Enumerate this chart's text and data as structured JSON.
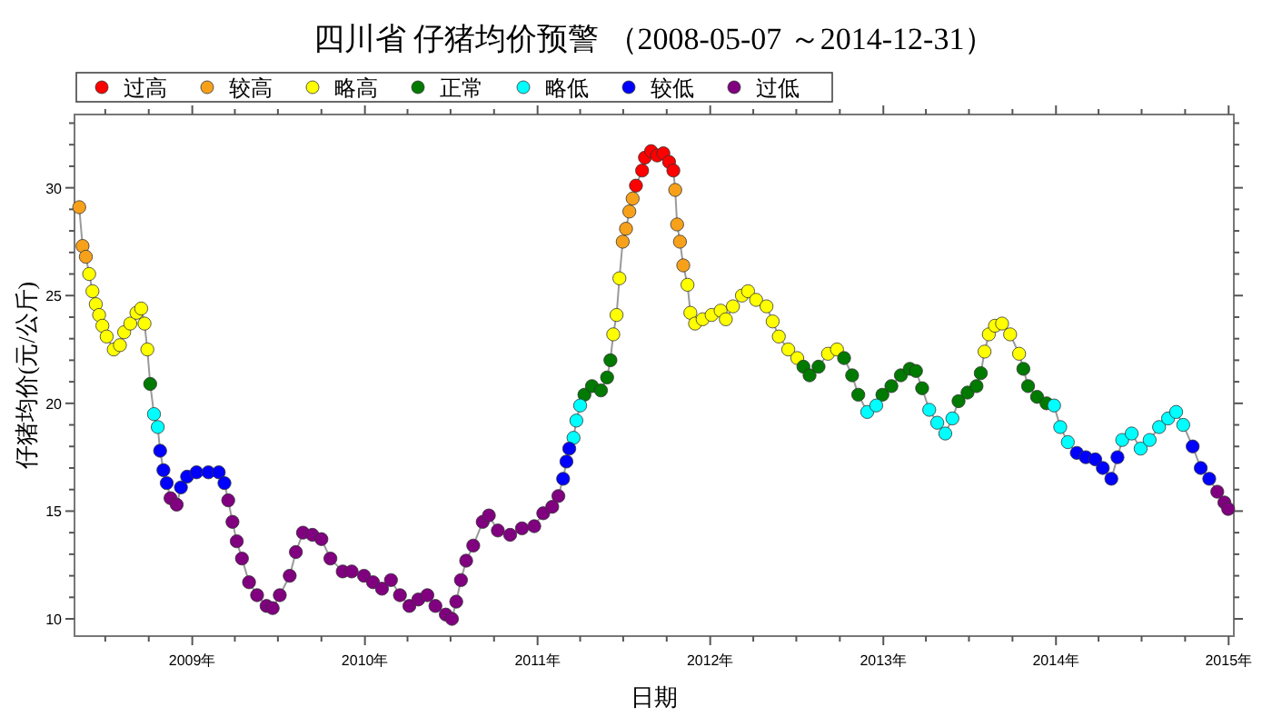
{
  "chart_data": {
    "type": "scatter",
    "title": "四川省 仔猪均价预警 （2008-05-07 ～2014-12-31）",
    "xlabel": "日期",
    "ylabel": "仔猪均价(元/公斤)",
    "xlim": [
      "2008-04-27",
      "2015-01-12"
    ],
    "ylim": [
      9.2,
      33.4
    ],
    "xticks": [
      {
        "value": "2008-07-01",
        "label": null
      },
      {
        "value": "2008-10-01",
        "label": null
      },
      {
        "value": "2009-01-01",
        "label": "2009年"
      },
      {
        "value": "2009-04-01",
        "label": null
      },
      {
        "value": "2009-07-01",
        "label": null
      },
      {
        "value": "2009-10-01",
        "label": null
      },
      {
        "value": "2010-01-01",
        "label": "2010年"
      },
      {
        "value": "2010-04-01",
        "label": null
      },
      {
        "value": "2010-07-01",
        "label": null
      },
      {
        "value": "2010-10-01",
        "label": null
      },
      {
        "value": "2011-01-01",
        "label": "2011年"
      },
      {
        "value": "2011-04-01",
        "label": null
      },
      {
        "value": "2011-07-01",
        "label": null
      },
      {
        "value": "2011-10-01",
        "label": null
      },
      {
        "value": "2012-01-01",
        "label": "2012年"
      },
      {
        "value": "2012-04-01",
        "label": null
      },
      {
        "value": "2012-07-01",
        "label": null
      },
      {
        "value": "2012-10-01",
        "label": null
      },
      {
        "value": "2013-01-01",
        "label": "2013年"
      },
      {
        "value": "2013-04-01",
        "label": null
      },
      {
        "value": "2013-07-01",
        "label": null
      },
      {
        "value": "2013-10-01",
        "label": null
      },
      {
        "value": "2014-01-01",
        "label": "2014年"
      },
      {
        "value": "2014-04-01",
        "label": null
      },
      {
        "value": "2014-07-01",
        "label": null
      },
      {
        "value": "2014-10-01",
        "label": null
      },
      {
        "value": "2015-01-01",
        "label": "2015年"
      }
    ],
    "yticks": [
      10,
      {
        "value": 11,
        "label": null
      },
      {
        "value": 12,
        "label": null
      },
      {
        "value": 13,
        "label": null
      },
      {
        "value": 14,
        "label": null
      },
      15,
      {
        "value": 16,
        "label": null
      },
      {
        "value": 17,
        "label": null
      },
      {
        "value": 18,
        "label": null
      },
      {
        "value": 19,
        "label": null
      },
      20,
      {
        "value": 21,
        "label": null
      },
      {
        "value": 22,
        "label": null
      },
      {
        "value": 23,
        "label": null
      },
      {
        "value": 24,
        "label": null
      },
      25,
      {
        "value": 26,
        "label": null
      },
      {
        "value": 27,
        "label": null
      },
      {
        "value": 28,
        "label": null
      },
      {
        "value": 29,
        "label": null
      },
      30,
      {
        "value": 31,
        "label": null
      },
      {
        "value": 32,
        "label": null
      },
      {
        "value": 33,
        "label": null
      }
    ],
    "legend": "top",
    "marker": "circle",
    "series": [
      {
        "type": "line",
        "marker": "none",
        "color": "#9a9a9a",
        "x": [
          "2008-05-07",
          "2008-05-14",
          "2008-05-21",
          "2008-05-28",
          "2008-06-04",
          "2008-06-11",
          "2008-06-18",
          "2008-06-25",
          "2008-07-04",
          "2008-07-19",
          "2008-08-01",
          "2008-08-10",
          "2008-08-23",
          "2008-09-05",
          "2008-09-15",
          "2008-09-22",
          "2008-09-28",
          "2008-10-04",
          "2008-10-12",
          "2008-10-20",
          "2008-10-25",
          "2008-11-01",
          "2008-11-08",
          "2008-11-16",
          "2008-11-29",
          "2008-12-08",
          "2008-12-21",
          "2009-01-10",
          "2009-02-04",
          "2009-02-26",
          "2009-03-10",
          "2009-03-18",
          "2009-03-27",
          "2009-04-05",
          "2009-04-16",
          "2009-05-01",
          "2009-05-18",
          "2009-06-07",
          "2009-06-20",
          "2009-07-05",
          "2009-07-26",
          "2009-08-08",
          "2009-08-23",
          "2009-09-12",
          "2009-10-01",
          "2009-10-20",
          "2009-11-15",
          "2009-12-04",
          "2009-12-30",
          "2010-01-18",
          "2010-02-06",
          "2010-02-25",
          "2010-03-16",
          "2010-04-05",
          "2010-04-24",
          "2010-05-13",
          "2010-05-30",
          "2010-06-21",
          "2010-07-04",
          "2010-07-13",
          "2010-07-23",
          "2010-08-03",
          "2010-08-18",
          "2010-09-07",
          "2010-09-20",
          "2010-10-09",
          "2010-11-04",
          "2010-11-29",
          "2010-12-25",
          "2011-01-13",
          "2011-02-01",
          "2011-02-14",
          "2011-02-24",
          "2011-03-03",
          "2011-03-09",
          "2011-03-18",
          "2011-03-24",
          "2011-04-01",
          "2011-04-10",
          "2011-04-26",
          "2011-05-15",
          "2011-05-28",
          "2011-06-04",
          "2011-06-10",
          "2011-06-17",
          "2011-06-23",
          "2011-06-30",
          "2011-07-07",
          "2011-07-14",
          "2011-07-21",
          "2011-07-28",
          "2011-08-10",
          "2011-08-16",
          "2011-08-29",
          "2011-09-11",
          "2011-09-24",
          "2011-10-06",
          "2011-10-15",
          "2011-10-19",
          "2011-10-23",
          "2011-10-29",
          "2011-11-05",
          "2011-11-14",
          "2011-11-20",
          "2011-11-30",
          "2011-12-16",
          "2012-01-04",
          "2012-01-23",
          "2012-02-03",
          "2012-02-18",
          "2012-03-08",
          "2012-03-21",
          "2012-04-07",
          "2012-04-29",
          "2012-05-12",
          "2012-05-25",
          "2012-06-14",
          "2012-07-03",
          "2012-07-16",
          "2012-07-29",
          "2012-08-17",
          "2012-09-06",
          "2012-09-25",
          "2012-10-10",
          "2012-10-27",
          "2012-11-09",
          "2012-11-28",
          "2012-12-17",
          "2012-12-30",
          "2013-01-18",
          "2013-02-07",
          "2013-02-26",
          "2013-03-11",
          "2013-03-24",
          "2013-04-08",
          "2013-04-25",
          "2013-05-12",
          "2013-05-27",
          "2013-06-09",
          "2013-06-28",
          "2013-07-17",
          "2013-07-26",
          "2013-08-03",
          "2013-08-12",
          "2013-08-25",
          "2013-09-09",
          "2013-09-26",
          "2013-10-15",
          "2013-10-24",
          "2013-11-03",
          "2013-11-22",
          "2013-12-12",
          "2013-12-28",
          "2014-01-10",
          "2014-01-26",
          "2014-02-14",
          "2014-03-05",
          "2014-03-25",
          "2014-04-10",
          "2014-04-28",
          "2014-05-11",
          "2014-05-21",
          "2014-06-10",
          "2014-06-29",
          "2014-07-18",
          "2014-08-07",
          "2014-08-26",
          "2014-09-12",
          "2014-09-27",
          "2014-10-17",
          "2014-11-03",
          "2014-11-21",
          "2014-12-08",
          "2014-12-23",
          "2014-12-31"
        ],
        "values": [
          29.1,
          27.3,
          26.8,
          26.0,
          25.2,
          24.6,
          24.1,
          23.6,
          23.1,
          22.5,
          22.7,
          23.3,
          23.7,
          24.2,
          24.4,
          23.7,
          22.5,
          20.9,
          19.5,
          18.9,
          17.8,
          16.9,
          16.3,
          15.6,
          15.3,
          16.1,
          16.6,
          16.8,
          16.8,
          16.8,
          16.3,
          15.5,
          14.5,
          13.6,
          12.8,
          11.7,
          11.1,
          10.6,
          10.5,
          11.1,
          12.0,
          13.1,
          14.0,
          13.9,
          13.7,
          12.8,
          12.2,
          12.2,
          12.0,
          11.7,
          11.4,
          11.8,
          11.1,
          10.6,
          10.9,
          11.1,
          10.6,
          10.2,
          10.0,
          10.8,
          11.8,
          12.7,
          13.4,
          14.5,
          14.8,
          14.1,
          13.9,
          14.2,
          14.3,
          14.9,
          15.2,
          15.7,
          16.5,
          17.3,
          17.9,
          18.4,
          19.2,
          19.9,
          20.4,
          20.8,
          20.6,
          21.2,
          22.0,
          23.2,
          24.1,
          25.8,
          27.5,
          28.1,
          28.9,
          29.5,
          30.1,
          30.8,
          31.4,
          31.7,
          31.5,
          31.6,
          31.2,
          30.8,
          29.9,
          28.3,
          27.5,
          26.4,
          25.5,
          24.2,
          23.7,
          23.9,
          24.1,
          24.3,
          23.9,
          24.5,
          25.0,
          25.2,
          24.8,
          24.5,
          23.8,
          23.1,
          22.5,
          22.1,
          21.7,
          21.3,
          21.7,
          22.3,
          22.5,
          22.1,
          21.3,
          20.4,
          19.6,
          19.9,
          20.4,
          20.8,
          21.3,
          21.6,
          21.5,
          20.7,
          19.7,
          19.1,
          18.6,
          19.3,
          20.1,
          20.5,
          20.8,
          21.4,
          22.4,
          23.2,
          23.6,
          23.7,
          23.2,
          22.3,
          21.6,
          20.8,
          20.3,
          20.0,
          19.9,
          18.9,
          18.2,
          17.7,
          17.5,
          17.4,
          17.0,
          16.5,
          17.5,
          18.3,
          18.6,
          17.9,
          18.3,
          18.9,
          19.3,
          19.6,
          19.0,
          18.0,
          17.0,
          16.5,
          15.9,
          15.4,
          15.1
        ]
      },
      {
        "name": "过高",
        "color": "#ff0000",
        "x": [
          "2011-07-28",
          "2011-08-10",
          "2011-08-16",
          "2011-08-29",
          "2011-09-11",
          "2011-09-24",
          "2011-10-06",
          "2011-10-15"
        ],
        "values": [
          30.1,
          30.8,
          31.4,
          31.7,
          31.5,
          31.6,
          31.2,
          30.8
        ]
      },
      {
        "name": "较高",
        "color": "#f7a11a",
        "x": [
          "2008-05-07",
          "2008-05-14",
          "2008-05-21",
          "2011-06-30",
          "2011-07-07",
          "2011-07-14",
          "2011-07-21",
          "2011-10-19",
          "2011-10-23",
          "2011-10-29",
          "2011-11-05"
        ],
        "values": [
          29.1,
          27.3,
          26.8,
          27.5,
          28.1,
          28.9,
          29.5,
          29.9,
          28.3,
          27.5,
          26.4
        ]
      },
      {
        "name": "略高",
        "color": "#ffff00",
        "x": [
          "2008-05-28",
          "2008-06-04",
          "2008-06-11",
          "2008-06-18",
          "2008-06-25",
          "2008-07-04",
          "2008-07-19",
          "2008-08-01",
          "2008-08-10",
          "2008-08-23",
          "2008-09-05",
          "2008-09-15",
          "2008-09-22",
          "2008-09-28",
          "2011-06-10",
          "2011-06-17",
          "2011-06-23",
          "2011-11-14",
          "2011-11-20",
          "2011-11-30",
          "2011-12-16",
          "2012-01-04",
          "2012-01-23",
          "2012-02-03",
          "2012-02-18",
          "2012-03-08",
          "2012-03-21",
          "2012-04-07",
          "2012-04-29",
          "2012-05-12",
          "2012-05-25",
          "2012-06-14",
          "2012-07-03",
          "2012-09-06",
          "2012-09-25",
          "2013-08-03",
          "2013-08-12",
          "2013-08-25",
          "2013-09-09",
          "2013-09-26",
          "2013-10-15"
        ],
        "values": [
          26.0,
          25.2,
          24.6,
          24.1,
          23.6,
          23.1,
          22.5,
          22.7,
          23.3,
          23.7,
          24.2,
          24.4,
          23.7,
          22.5,
          23.2,
          24.1,
          25.8,
          25.5,
          24.2,
          23.7,
          23.9,
          24.1,
          24.3,
          23.9,
          24.5,
          25.0,
          25.2,
          24.8,
          24.5,
          23.8,
          23.1,
          22.5,
          22.1,
          22.3,
          22.5,
          22.4,
          23.2,
          23.6,
          23.7,
          23.2,
          22.3
        ]
      },
      {
        "name": "正常",
        "color": "#007a00",
        "x": [
          "2008-10-04",
          "2011-04-10",
          "2011-04-26",
          "2011-05-15",
          "2011-05-28",
          "2011-06-04",
          "2012-07-16",
          "2012-07-29",
          "2012-08-17",
          "2012-10-10",
          "2012-10-27",
          "2012-11-09",
          "2012-12-30",
          "2013-01-18",
          "2013-02-07",
          "2013-02-26",
          "2013-03-11",
          "2013-03-24",
          "2013-06-09",
          "2013-06-28",
          "2013-07-17",
          "2013-07-26",
          "2013-10-24",
          "2013-11-03",
          "2013-11-22",
          "2013-12-12"
        ],
        "values": [
          20.9,
          20.4,
          20.8,
          20.6,
          21.2,
          22.0,
          21.7,
          21.3,
          21.7,
          22.1,
          21.3,
          20.4,
          20.4,
          20.8,
          21.3,
          21.6,
          21.5,
          20.7,
          20.1,
          20.5,
          20.8,
          21.4,
          21.6,
          20.8,
          20.3,
          20.0
        ]
      },
      {
        "name": "略低",
        "color": "#00ffff",
        "x": [
          "2008-10-12",
          "2008-10-20",
          "2011-03-18",
          "2011-03-24",
          "2011-04-01",
          "2012-11-28",
          "2012-12-17",
          "2013-04-08",
          "2013-04-25",
          "2013-05-12",
          "2013-05-27",
          "2013-12-28",
          "2014-01-10",
          "2014-01-26",
          "2014-05-21",
          "2014-06-10",
          "2014-06-29",
          "2014-07-18",
          "2014-08-07",
          "2014-08-26",
          "2014-09-12",
          "2014-09-27"
        ],
        "values": [
          19.5,
          18.9,
          18.4,
          19.2,
          19.9,
          19.6,
          19.9,
          19.7,
          19.1,
          18.6,
          19.3,
          19.9,
          18.9,
          18.2,
          18.3,
          18.6,
          17.9,
          18.3,
          18.9,
          19.3,
          19.6,
          19.0
        ]
      },
      {
        "name": "较低",
        "color": "#0000ff",
        "x": [
          "2008-10-25",
          "2008-11-01",
          "2008-11-08",
          "2008-12-08",
          "2008-12-21",
          "2009-01-10",
          "2009-02-04",
          "2009-02-26",
          "2009-03-10",
          "2011-02-24",
          "2011-03-03",
          "2011-03-09",
          "2014-02-14",
          "2014-03-05",
          "2014-03-25",
          "2014-04-10",
          "2014-04-28",
          "2014-05-11",
          "2014-10-17",
          "2014-11-03",
          "2014-11-21"
        ],
        "values": [
          17.8,
          16.9,
          16.3,
          16.1,
          16.6,
          16.8,
          16.8,
          16.8,
          16.3,
          16.5,
          17.3,
          17.9,
          17.7,
          17.5,
          17.4,
          17.0,
          16.5,
          17.5,
          18.0,
          17.0,
          16.5
        ]
      },
      {
        "name": "过低",
        "color": "#800080",
        "x": [
          "2008-11-16",
          "2008-11-29",
          "2009-03-18",
          "2009-03-27",
          "2009-04-05",
          "2009-04-16",
          "2009-05-01",
          "2009-05-18",
          "2009-06-07",
          "2009-06-20",
          "2009-07-05",
          "2009-07-26",
          "2009-08-08",
          "2009-08-23",
          "2009-09-12",
          "2009-10-01",
          "2009-10-20",
          "2009-11-15",
          "2009-12-04",
          "2009-12-30",
          "2010-01-18",
          "2010-02-06",
          "2010-02-25",
          "2010-03-16",
          "2010-04-05",
          "2010-04-24",
          "2010-05-13",
          "2010-05-30",
          "2010-06-21",
          "2010-07-04",
          "2010-07-13",
          "2010-07-23",
          "2010-08-03",
          "2010-08-18",
          "2010-09-07",
          "2010-09-20",
          "2010-10-09",
          "2010-11-04",
          "2010-11-29",
          "2010-12-25",
          "2011-01-13",
          "2011-02-01",
          "2011-02-14",
          "2014-12-08",
          "2014-12-23",
          "2014-12-31"
        ],
        "values": [
          15.6,
          15.3,
          15.5,
          14.5,
          13.6,
          12.8,
          11.7,
          11.1,
          10.6,
          10.5,
          11.1,
          12.0,
          13.1,
          14.0,
          13.9,
          13.7,
          12.8,
          12.2,
          12.2,
          12.0,
          11.7,
          11.4,
          11.8,
          11.1,
          10.6,
          10.9,
          11.1,
          10.6,
          10.2,
          10.0,
          10.8,
          11.8,
          12.7,
          13.4,
          14.5,
          14.8,
          14.1,
          13.9,
          14.2,
          14.3,
          14.9,
          15.2,
          15.7,
          15.9,
          15.4,
          15.1
        ]
      }
    ]
  }
}
